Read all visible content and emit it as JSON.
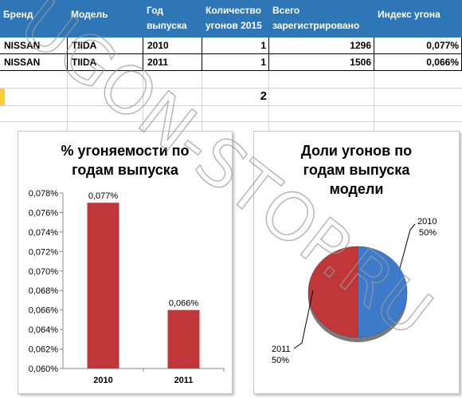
{
  "table": {
    "headers": [
      {
        "line1": "Бренд",
        "line2": ""
      },
      {
        "line1": "Модель",
        "line2": ""
      },
      {
        "line1": "Год",
        "line2": "выпуска"
      },
      {
        "line1": "Количество",
        "line2": "угонов 2015"
      },
      {
        "line1": "Всего",
        "line2": "зарегистрировано"
      },
      {
        "line1": "Индекс угона",
        "line2": ""
      }
    ],
    "rows": [
      [
        "NISSAN",
        "TIIDA",
        "2010",
        "1",
        "1296",
        "0,077%"
      ],
      [
        "NISSAN",
        "TIIDA",
        "2011",
        "1",
        "1506",
        "0,066%"
      ]
    ],
    "total": "2"
  },
  "watermark": "UGON-STOP.RU",
  "colors": {
    "header_bg": "#2f76b6",
    "bar": "#c0373a",
    "pie_2010": "#3d7ac9",
    "pie_2011": "#c0373a"
  },
  "chart_data": [
    {
      "type": "bar",
      "title_line1": "% угоняемости по",
      "title_line2": "годам выпуска",
      "categories": [
        "2010",
        "2011"
      ],
      "values": [
        0.077,
        0.066
      ],
      "data_labels": [
        "0,077%",
        "0,066%"
      ],
      "ylim": [
        0.06,
        0.078
      ],
      "y_ticks": [
        "0,060%",
        "0,062%",
        "0,064%",
        "0,066%",
        "0,068%",
        "0,070%",
        "0,072%",
        "0,074%",
        "0,076%",
        "0,078%"
      ],
      "y_tick_values": [
        0.06,
        0.062,
        0.064,
        0.066,
        0.068,
        0.07,
        0.072,
        0.074,
        0.076,
        0.078
      ]
    },
    {
      "type": "pie",
      "title_line1": "Доли угонов по",
      "title_line2": "годам выпуска",
      "title_line3": "модели",
      "slices": [
        {
          "year": "2010",
          "pct_label": "50%",
          "value": 50
        },
        {
          "year": "2011",
          "pct_label": "50%",
          "value": 50
        }
      ]
    }
  ]
}
